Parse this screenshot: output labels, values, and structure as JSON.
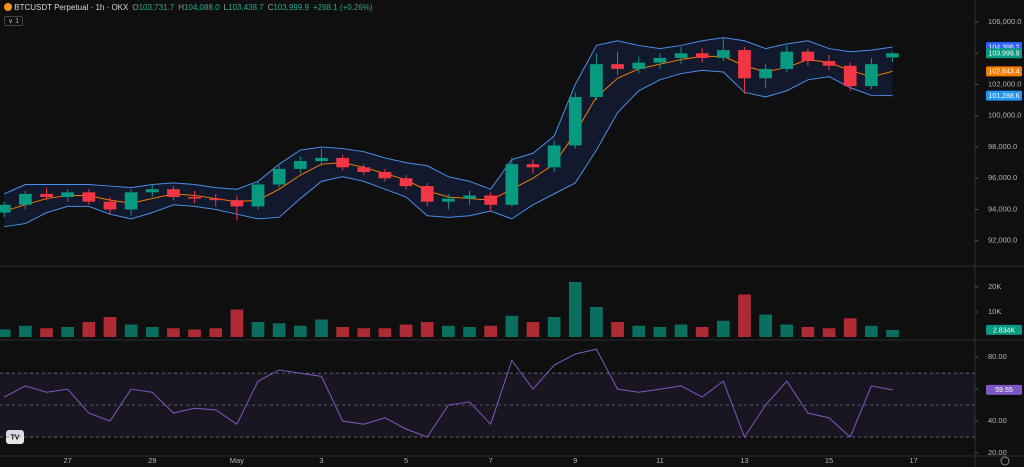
{
  "header": {
    "symbol": "BTCUSDT Perpetual · 1h · OKX",
    "ohlc": [
      {
        "key": "O",
        "value": "103,731.7"
      },
      {
        "key": "H",
        "value": "104,088.0"
      },
      {
        "key": "L",
        "value": "103,438.7"
      },
      {
        "key": "C",
        "value": "103,999.9"
      }
    ],
    "change": "+268.1 (+0.26%)",
    "indicator_count": "1"
  },
  "chart_data": [
    {
      "type": "candlestick",
      "up_color": "#089981",
      "down_color": "#f23645",
      "x": [
        25.5,
        26,
        26.5,
        27,
        27.5,
        28,
        28.5,
        29,
        29.5,
        30,
        30.5,
        31,
        31.5,
        32,
        32.5,
        33,
        33.5,
        34,
        34.5,
        35,
        35.5,
        36,
        36.5,
        37,
        37.5,
        38,
        38.5,
        39,
        39.5,
        40,
        40.5,
        41,
        41.5,
        42,
        42.5,
        43,
        43.5,
        44,
        44.5,
        45,
        45.5,
        46,
        46.5
      ],
      "open": [
        93800,
        94300,
        95000,
        94800,
        95100,
        94500,
        94000,
        95100,
        95300,
        94800,
        94700,
        94600,
        94200,
        95600,
        96600,
        97100,
        97300,
        96700,
        96400,
        96000,
        95500,
        94500,
        94700,
        94900,
        94300,
        96900,
        96700,
        98100,
        101200,
        103300,
        103000,
        103400,
        103700,
        104000,
        103700,
        104200,
        102400,
        103000,
        104100,
        103500,
        103200,
        101900,
        103731.7
      ],
      "high": [
        94500,
        95200,
        95400,
        95300,
        95300,
        94800,
        95300,
        95600,
        95500,
        95200,
        95000,
        94900,
        95800,
        96800,
        97400,
        97900,
        97500,
        96900,
        96600,
        96200,
        95700,
        95000,
        95200,
        95100,
        97300,
        97200,
        98400,
        101500,
        104000,
        104100,
        103800,
        104000,
        104400,
        104300,
        105000,
        104400,
        103300,
        104500,
        104300,
        103900,
        103400,
        103700,
        104088
      ],
      "low": [
        93500,
        94000,
        94600,
        94500,
        94300,
        93700,
        93600,
        94800,
        94600,
        94400,
        94200,
        93300,
        94000,
        95400,
        96300,
        96800,
        96500,
        96200,
        95800,
        95300,
        94200,
        94000,
        94300,
        93900,
        94200,
        96300,
        96400,
        97900,
        101000,
        102600,
        102700,
        103000,
        103300,
        103400,
        103500,
        101400,
        101800,
        102800,
        103200,
        102900,
        101600,
        101700,
        103438.7
      ],
      "close": [
        94300,
        95000,
        94800,
        95100,
        94500,
        94000,
        95100,
        95300,
        94800,
        94700,
        94600,
        94200,
        95600,
        96600,
        97100,
        97300,
        96700,
        96400,
        96000,
        95500,
        94500,
        94700,
        94900,
        94300,
        96900,
        96700,
        98100,
        101200,
        103300,
        103000,
        103400,
        103700,
        104000,
        103700,
        104200,
        102400,
        103000,
        104100,
        103500,
        103200,
        101900,
        103300,
        103999.9
      ],
      "series": [
        {
          "color": "#4a8ee8",
          "values": [
            95000,
            95600,
            95600,
            95600,
            95600,
            95500,
            95400,
            95600,
            95700,
            95600,
            95400,
            95300,
            95800,
            96900,
            97800,
            98000,
            97900,
            97700,
            97300,
            97000,
            96800,
            96100,
            95800,
            95300,
            97200,
            97600,
            98700,
            102000,
            104500,
            104800,
            104500,
            104300,
            104500,
            104800,
            105000,
            104800,
            104300,
            104600,
            104800,
            104300,
            104100,
            104200,
            104398.2
          ]
        },
        {
          "color": "#f57c00",
          "values": [
            93900,
            94300,
            94700,
            94900,
            94900,
            94600,
            94400,
            94700,
            95000,
            94900,
            94700,
            94500,
            94600,
            95300,
            96200,
            96900,
            97000,
            96700,
            96300,
            95900,
            95200,
            94800,
            94700,
            94600,
            95300,
            96000,
            96900,
            98900,
            101200,
            102400,
            103000,
            103300,
            103600,
            103800,
            103800,
            103200,
            102800,
            103100,
            103600,
            103400,
            102900,
            102500,
            102843.4
          ]
        },
        {
          "color": "#4a8ee8",
          "values": [
            92900,
            93100,
            93800,
            94200,
            94200,
            93700,
            93400,
            93800,
            94300,
            94200,
            94000,
            93700,
            93400,
            93500,
            94700,
            95800,
            96100,
            95800,
            95300,
            94800,
            93600,
            93500,
            93600,
            93900,
            93400,
            94300,
            95000,
            95700,
            97800,
            100200,
            101600,
            102300,
            102700,
            102900,
            102800,
            101500,
            101200,
            101600,
            102300,
            102500,
            101800,
            101300,
            101288.6
          ]
        }
      ],
      "band_fill": "rgba(41,98,255,0.12)",
      "xlim": [
        25.4,
        48.45
      ],
      "xticks": [
        27,
        29,
        {
          "value": 31,
          "label": "May"
        },
        {
          "value": 33,
          "label": "3"
        },
        {
          "value": 35,
          "label": "5"
        },
        {
          "value": 37,
          "label": "7"
        },
        {
          "value": 39,
          "label": "9"
        },
        {
          "value": 41,
          "label": "11"
        },
        {
          "value": 43,
          "label": "13"
        },
        {
          "value": 45,
          "label": "15"
        },
        {
          "value": 47,
          "label": "17"
        }
      ],
      "ylim": [
        90448,
        107408
      ],
      "yticks": [
        {
          "value": 92000,
          "label": "92,000.0"
        },
        {
          "value": 94000,
          "label": "94,000.0"
        },
        {
          "value": 96000,
          "label": "96,000.0"
        },
        {
          "value": 98000,
          "label": "98,000.0"
        },
        {
          "value": 100000,
          "label": "100,000.0"
        },
        {
          "value": 102000,
          "label": "102,000.0"
        },
        {
          "value": 104000,
          "label": "104,000.0"
        },
        {
          "value": 106000,
          "label": "106,000.0"
        }
      ],
      "tags": [
        {
          "value": 104398.2,
          "label": "104,398.2",
          "color": "#2962ff"
        },
        {
          "value": 103999.9,
          "label": "103,999.9",
          "color": "#089981"
        },
        {
          "value": 102843.4,
          "label": "102,843.4",
          "color": "#f57c00"
        },
        {
          "value": 101288.6,
          "label": "101,288.6",
          "color": "#2196f3"
        }
      ]
    },
    {
      "type": "bar",
      "values": [
        3000,
        4500,
        3500,
        4000,
        6000,
        8000,
        5000,
        4000,
        3500,
        3000,
        3500,
        11000,
        6000,
        5500,
        4500,
        7000,
        4000,
        3500,
        3500,
        5000,
        6000,
        4500,
        4000,
        4500,
        8500,
        6000,
        8000,
        22000,
        12000,
        6000,
        4500,
        4000,
        5000,
        4000,
        6500,
        17000,
        9000,
        5000,
        4000,
        3500,
        7500,
        4500,
        2834
      ],
      "ylim": [
        0,
        27600
      ],
      "yticks": [
        {
          "value": 10000,
          "label": "10K"
        },
        {
          "value": 20000,
          "label": "20K"
        }
      ],
      "tags": [
        {
          "value": 2834,
          "label": "2.834K",
          "color": "#089981"
        }
      ]
    },
    {
      "type": "line",
      "color": "#7e57c2",
      "values": [
        55,
        62,
        58,
        60,
        45,
        40,
        60,
        58,
        45,
        48,
        47,
        38,
        65,
        72,
        70,
        68,
        40,
        38,
        42,
        35,
        30,
        50,
        52,
        38,
        78,
        60,
        75,
        82,
        85,
        60,
        58,
        60,
        62,
        55,
        65,
        30,
        50,
        65,
        45,
        42,
        30,
        62,
        59.55
      ],
      "levels": [
        70,
        50,
        30
      ],
      "band_fill": "rgba(126,87,194,0.1)",
      "ylim": [
        18.7,
        88.9
      ],
      "yticks": [
        {
          "value": 20,
          "label": "20.00"
        },
        {
          "value": 40,
          "label": "40.00"
        },
        {
          "value": 60,
          "label": "60.00"
        },
        {
          "value": 80,
          "label": "80.00"
        }
      ],
      "tags": [
        {
          "value": 59.55,
          "label": "59.55",
          "color": "#7e57c2"
        }
      ]
    }
  ]
}
